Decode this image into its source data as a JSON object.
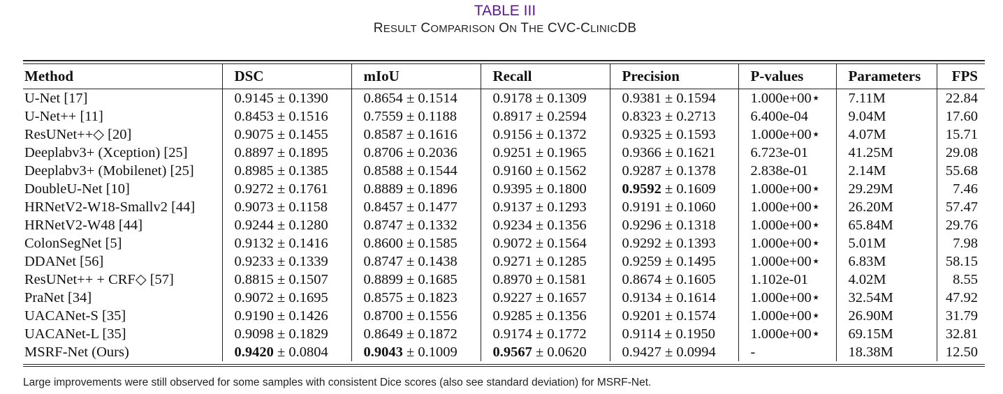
{
  "title": {
    "label": "TABLE III",
    "caption": "Result Comparison on the CVC-ClinicDB"
  },
  "headers": [
    "Method",
    "DSC",
    "mIoU",
    "Recall",
    "Precision",
    "P-values",
    "Parameters",
    "FPS"
  ],
  "rows": [
    {
      "method": "U-Net [17]",
      "dsc": "0.9145",
      "dsc_sd": "± 0.1390",
      "miou": "0.8654",
      "miou_sd": "± 0.1514",
      "recall": "0.9178",
      "recall_sd": "± 0.1309",
      "precision": "0.9381",
      "precision_sd": "± 0.1594",
      "p": "1.000e+00⋆",
      "params": "7.11M",
      "fps": "22.84"
    },
    {
      "method": "U-Net++ [11]",
      "dsc": "0.8453",
      "dsc_sd": "± 0.1516",
      "miou": "0.7559",
      "miou_sd": "± 0.1188",
      "recall": "0.8917",
      "recall_sd": "± 0.2594",
      "precision": "0.8323",
      "precision_sd": "± 0.2713",
      "p": "6.400e-04",
      "params": "9.04M",
      "fps": "17.60"
    },
    {
      "method": "ResUNet++◇ [20]",
      "dsc": "0.9075",
      "dsc_sd": "± 0.1455",
      "miou": "0.8587",
      "miou_sd": "± 0.1616",
      "recall": "0.9156",
      "recall_sd": "± 0.1372",
      "precision": "0.9325",
      "precision_sd": "± 0.1593",
      "p": "1.000e+00⋆",
      "params": "4.07M",
      "fps": "15.71"
    },
    {
      "method": "Deeplabv3+ (Xception) [25]",
      "dsc": "0.8897",
      "dsc_sd": "± 0.1895",
      "miou": "0.8706",
      "miou_sd": "± 0.2036",
      "recall": "0.9251",
      "recall_sd": "± 0.1965",
      "precision": "0.9366",
      "precision_sd": "± 0.1621",
      "p": "6.723e-01",
      "params": "41.25M",
      "fps": "29.08"
    },
    {
      "method": "Deeplabv3+ (Mobilenet) [25]",
      "dsc": "0.8985",
      "dsc_sd": "± 0.1385",
      "miou": "0.8588",
      "miou_sd": "± 0.1544",
      "recall": "0.9160",
      "recall_sd": "± 0.1562",
      "precision": "0.9287",
      "precision_sd": "± 0.1378",
      "p": "2.838e-01",
      "params": "2.14M",
      "fps": "55.68"
    },
    {
      "method": "DoubleU-Net [10]",
      "dsc": "0.9272",
      "dsc_sd": "± 0.1761",
      "miou": "0.8889",
      "miou_sd": "± 0.1896",
      "recall": "0.9395",
      "recall_sd": "± 0.1800",
      "precision": "0.9592",
      "precision_sd": "± 0.1609",
      "p": "1.000e+00⋆",
      "params": "29.29M",
      "fps": "7.46",
      "bold": [
        "precision"
      ]
    },
    {
      "method": "HRNetV2-W18-Smallv2 [44]",
      "dsc": "0.9073",
      "dsc_sd": "± 0.1158",
      "miou": "0.8457",
      "miou_sd": "± 0.1477",
      "recall": "0.9137",
      "recall_sd": "± 0.1293",
      "precision": "0.9191",
      "precision_sd": "± 0.1060",
      "p": "1.000e+00⋆",
      "params": "26.20M",
      "fps": "57.47"
    },
    {
      "method": "HRNetV2-W48 [44]",
      "dsc": "0.9244",
      "dsc_sd": "± 0.1280",
      "miou": "0.8747",
      "miou_sd": "± 0.1332",
      "recall": "0.9234",
      "recall_sd": "± 0.1356",
      "precision": "0.9296",
      "precision_sd": "± 0.1318",
      "p": "1.000e+00⋆",
      "params": "65.84M",
      "fps": "29.76"
    },
    {
      "method": "ColonSegNet [5]",
      "dsc": "0.9132",
      "dsc_sd": "± 0.1416",
      "miou": "0.8600",
      "miou_sd": "± 0.1585",
      "recall": "0.9072",
      "recall_sd": "± 0.1564",
      "precision": "0.9292",
      "precision_sd": "± 0.1393",
      "p": "1.000e+00⋆",
      "params": "5.01M",
      "fps": "7.98"
    },
    {
      "method": "DDANet [56]",
      "dsc": "0.9233",
      "dsc_sd": "± 0.1339",
      "miou": "0.8747",
      "miou_sd": "± 0.1438",
      "recall": "0.9271",
      "recall_sd": "± 0.1285",
      "precision": "0.9259",
      "precision_sd": "± 0.1495",
      "p": "1.000e+00⋆",
      "params": "6.83M",
      "fps": "58.15"
    },
    {
      "method": "ResUNet++ + CRF◇ [57]",
      "dsc": "0.8815",
      "dsc_sd": "± 0.1507",
      "miou": "0.8899",
      "miou_sd": "± 0.1685",
      "recall": "0.8970",
      "recall_sd": "± 0.1581",
      "precision": "0.8674",
      "precision_sd": "± 0.1605",
      "p": "1.102e-01",
      "params": "4.02M",
      "fps": "8.55"
    },
    {
      "method": "PraNet [34]",
      "dsc": "0.9072",
      "dsc_sd": "± 0.1695",
      "miou": "0.8575",
      "miou_sd": "± 0.1823",
      "recall": "0.9227",
      "recall_sd": "± 0.1657",
      "precision": "0.9134",
      "precision_sd": "± 0.1614",
      "p": "1.000e+00⋆",
      "params": "32.54M",
      "fps": "47.92"
    },
    {
      "method": "UACANet-S [35]",
      "dsc": "0.9190",
      "dsc_sd": "± 0.1426",
      "miou": "0.8700",
      "miou_sd": "± 0.1556",
      "recall": "0.9285",
      "recall_sd": "± 0.1356",
      "precision": "0.9201",
      "precision_sd": "± 0.1574",
      "p": "1.000e+00⋆",
      "params": "26.90M",
      "fps": "31.79"
    },
    {
      "method": "UACANet-L [35]",
      "dsc": "0.9098",
      "dsc_sd": "± 0.1829",
      "miou": "0.8649",
      "miou_sd": "± 0.1872",
      "recall": "0.9174",
      "recall_sd": "± 0.1772",
      "precision": "0.9114",
      "precision_sd": "± 0.1950",
      "p": "1.000e+00⋆",
      "params": "69.15M",
      "fps": "32.81"
    },
    {
      "method": "MSRF-Net (Ours)",
      "dsc": "0.9420",
      "dsc_sd": "± 0.0804",
      "miou": "0.9043",
      "miou_sd": "± 0.1009",
      "recall": "0.9567",
      "recall_sd": "± 0.0620",
      "precision": "0.9427",
      "precision_sd": "± 0.0994",
      "p": "-",
      "params": "18.38M",
      "fps": "12.50",
      "bold": [
        "dsc",
        "miou",
        "recall"
      ]
    }
  ],
  "note": "Large improvements were still observed for some samples with consistent Dice scores (also see standard deviation) for MSRF-Net."
}
